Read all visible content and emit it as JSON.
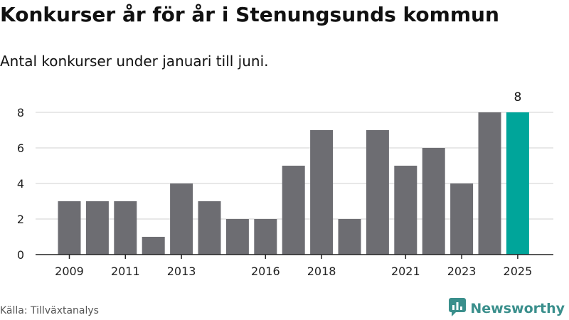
{
  "colors": {
    "bar": "#6d6d72",
    "highlight": "#00a59a",
    "grid": "#d9d9d9",
    "axis": "#222222",
    "brand": "#3a8f8c"
  },
  "header": {
    "title": "Konkurser år för år i Stenungsunds kommun",
    "subtitle": "Antal konkurser under januari till juni."
  },
  "footer": {
    "source": "Källa: Tillväxtanalys",
    "brand_name": "Newsworthy",
    "brand_icon": "newsworthy-logo-icon"
  },
  "chart_data": {
    "type": "bar",
    "title": "Konkurser år för år i Stenungsunds kommun",
    "subtitle": "Antal konkurser under januari till juni.",
    "xlabel": "",
    "ylabel": "",
    "categories": [
      "2009",
      "2010",
      "2011",
      "2012",
      "2013",
      "2014",
      "2015",
      "2016",
      "2017",
      "2018",
      "2019",
      "2020",
      "2021",
      "2022",
      "2023",
      "2024",
      "2025"
    ],
    "values": [
      3,
      3,
      3,
      1,
      4,
      3,
      2,
      2,
      5,
      7,
      2,
      7,
      5,
      6,
      4,
      8,
      8
    ],
    "x_tick_labels": [
      "2009",
      "2011",
      "2013",
      "2016",
      "2018",
      "2021",
      "2023",
      "2025"
    ],
    "y_ticks": [
      0,
      2,
      4,
      6,
      8
    ],
    "ylim": [
      0,
      8
    ],
    "grid": true,
    "highlight_category": "2025",
    "data_labels": [
      {
        "category": "2025",
        "value": 8,
        "text": "8"
      }
    ]
  }
}
